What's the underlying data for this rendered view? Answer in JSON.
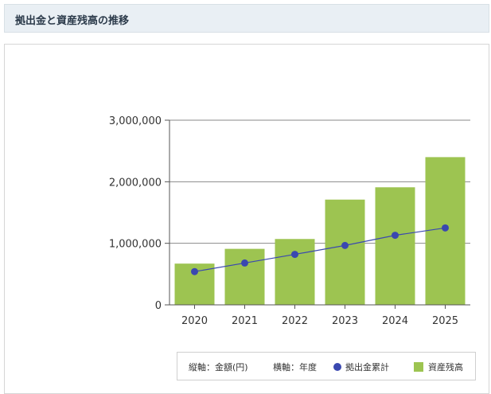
{
  "header": {
    "title": "拠出金と資産残高の推移"
  },
  "chart_data": {
    "type": "bar",
    "categories": [
      "2020",
      "2021",
      "2022",
      "2023",
      "2024",
      "2025"
    ],
    "series": [
      {
        "name": "資産残高",
        "type": "bar",
        "color": "#9dc451",
        "values": [
          670000,
          910000,
          1070000,
          1710000,
          1910000,
          2400000
        ]
      },
      {
        "name": "拠出金累計",
        "type": "line",
        "color": "#3a48b0",
        "values": [
          540000,
          680000,
          820000,
          965000,
          1130000,
          1250000
        ]
      }
    ],
    "ylim": [
      0,
      3000000
    ],
    "yticks": [
      0,
      1000000,
      2000000,
      3000000
    ],
    "ytick_labels": [
      "0",
      "1,000,000",
      "2,000,000",
      "3,000,000"
    ],
    "grid": true,
    "legend_placement": "bottom-right"
  },
  "legend": {
    "axis_note_y": "縦軸：金額(円)",
    "axis_note_x": "横軸：年度",
    "line_label": "拠出金累計",
    "bar_label": "資産残高"
  }
}
